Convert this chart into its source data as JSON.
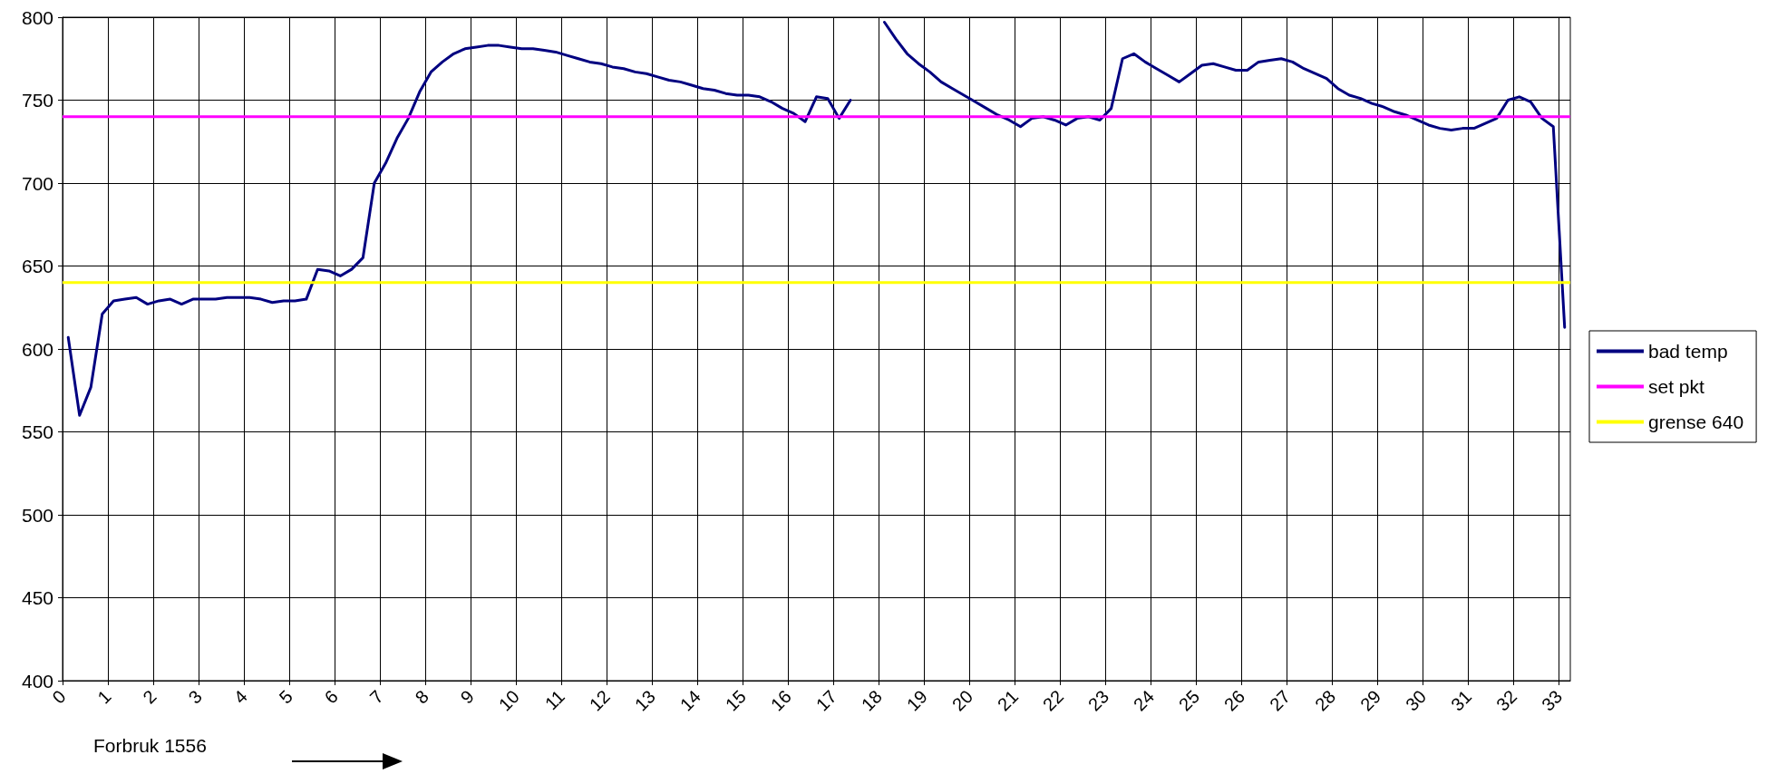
{
  "chart_data": {
    "type": "line",
    "x": [
      0.125,
      0.375,
      0.625,
      0.875,
      1.125,
      1.375,
      1.625,
      1.875,
      2.125,
      2.375,
      2.625,
      2.875,
      3.125,
      3.375,
      3.625,
      3.875,
      4.125,
      4.375,
      4.625,
      4.875,
      5.125,
      5.375,
      5.625,
      5.875,
      6.125,
      6.375,
      6.625,
      6.875,
      7.125,
      7.375,
      7.625,
      7.875,
      8.125,
      8.375,
      8.625,
      8.875,
      9.125,
      9.375,
      9.625,
      9.875,
      10.125,
      10.375,
      10.625,
      10.875,
      11.125,
      11.375,
      11.625,
      11.875,
      12.125,
      12.375,
      12.625,
      12.875,
      13.125,
      13.375,
      13.625,
      13.875,
      14.125,
      14.375,
      14.625,
      14.875,
      15.125,
      15.375,
      15.625,
      15.875,
      16.125,
      16.375,
      16.625,
      16.875,
      17.125,
      17.375,
      17.625,
      17.875,
      18.125,
      18.375,
      18.625,
      18.875,
      19.125,
      19.375,
      19.625,
      19.875,
      20.125,
      20.375,
      20.625,
      20.875,
      21.125,
      21.375,
      21.625,
      21.875,
      22.125,
      22.375,
      22.625,
      22.875,
      23.125,
      23.375,
      23.625,
      23.875,
      24.125,
      24.375,
      24.625,
      24.875,
      25.125,
      25.375,
      25.625,
      25.875,
      26.125,
      26.375,
      26.625,
      26.875,
      27.125,
      27.375,
      27.625,
      27.875,
      28.125,
      28.375,
      28.625,
      28.875,
      29.125,
      29.375,
      29.625,
      29.875,
      30.125,
      30.375,
      30.625,
      30.875,
      31.125,
      31.375,
      31.625,
      31.875,
      32.125,
      32.375,
      32.625,
      32.875,
      33.125
    ],
    "series": [
      {
        "name": "bad temp",
        "color": "#000080",
        "values": [
          607,
          560,
          577,
          621,
          629,
          630,
          631,
          627,
          629,
          630,
          627,
          630,
          630,
          630,
          631,
          631,
          631,
          630,
          628,
          629,
          629,
          630,
          648,
          647,
          644,
          648,
          655,
          700,
          712,
          727,
          739,
          755,
          767,
          773,
          778,
          781,
          782,
          783,
          783,
          782,
          781,
          781,
          780,
          779,
          777,
          775,
          773,
          772,
          770,
          769,
          767,
          766,
          764,
          762,
          761,
          759,
          757,
          756,
          754,
          753,
          753,
          752,
          749,
          745,
          742,
          737,
          752,
          751,
          739,
          750,
          null,
          null,
          797,
          787,
          778,
          772,
          767,
          761,
          757,
          753,
          749,
          745,
          741,
          738,
          734,
          739,
          740,
          738,
          735,
          739,
          740,
          738,
          745,
          775,
          778,
          773,
          769,
          765,
          761,
          766,
          771,
          772,
          770,
          768,
          768,
          773,
          774,
          775,
          773,
          769,
          766,
          763,
          757,
          753,
          751,
          748,
          746,
          743,
          741,
          738,
          735,
          733,
          732,
          733,
          733,
          736,
          739,
          750,
          752,
          749,
          739,
          734,
          613
        ]
      }
    ],
    "ref_lines": [
      {
        "axis": "y",
        "value": 740,
        "label": "set pkt",
        "color": "#ff00ff"
      },
      {
        "axis": "y",
        "value": 640,
        "label": "grense 640",
        "color": "#ffff00"
      }
    ],
    "xlim": [
      0,
      33.25
    ],
    "xticks": [
      0,
      1,
      2,
      3,
      4,
      5,
      6,
      7,
      8,
      9,
      10,
      11,
      12,
      13,
      14,
      15,
      16,
      17,
      18,
      19,
      20,
      21,
      22,
      23,
      24,
      25,
      26,
      27,
      28,
      29,
      30,
      31,
      32,
      33
    ],
    "ylim": [
      400,
      800
    ],
    "yticks": [
      400,
      450,
      500,
      550,
      600,
      650,
      700,
      750,
      800
    ],
    "grid": true,
    "legend": "right",
    "marker": "none",
    "line_style": "solid",
    "annotations": [
      "Forbruk 1556"
    ]
  }
}
